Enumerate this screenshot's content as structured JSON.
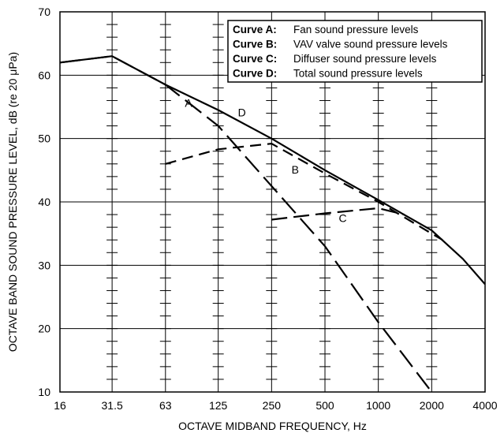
{
  "chart_data": {
    "type": "line",
    "xlabel": "OCTAVE MIDBAND FREQUENCY, Hz",
    "ylabel": "OCTAVE BAND SOUND PRESSURE LEVEL, dB (re 20 μPa)",
    "x_scale": "log2",
    "x_ticks": [
      "16",
      "31.5",
      "63",
      "125",
      "250",
      "500",
      "1000",
      "2000",
      "4000"
    ],
    "x_tick_values": [
      16,
      31.5,
      63,
      125,
      250,
      500,
      1000,
      2000,
      4000
    ],
    "xlim": [
      16,
      4000
    ],
    "ylim": [
      10,
      70
    ],
    "y_ticks": [
      10,
      20,
      30,
      40,
      50,
      60,
      70
    ],
    "grid": "horizontal lines every 10 dB, vertical lines at each octave with minor tick marks",
    "legend": {
      "placement": "top-right",
      "entries": [
        {
          "key": "Curve A:",
          "desc": "Fan sound pressure levels"
        },
        {
          "key": "Curve B:",
          "desc": "VAV valve sound pressure levels"
        },
        {
          "key": "Curve C:",
          "desc": "Diffuser sound pressure levels"
        },
        {
          "key": "Curve D:",
          "desc": "Total sound pressure levels"
        }
      ]
    },
    "series": [
      {
        "name": "A",
        "style": "long-dash",
        "label_at": {
          "x": 85,
          "y": 55
        },
        "points": [
          [
            16,
            62
          ],
          [
            31.5,
            63
          ],
          [
            63,
            58.5
          ],
          [
            125,
            52
          ],
          [
            250,
            42.5
          ],
          [
            500,
            33
          ],
          [
            1000,
            21
          ],
          [
            2000,
            10
          ]
        ]
      },
      {
        "name": "B",
        "style": "short-dash",
        "label_at": {
          "x": 340,
          "y": 44.5
        },
        "points": [
          [
            63,
            46
          ],
          [
            125,
            48.3
          ],
          [
            250,
            49.2
          ],
          [
            500,
            44.5
          ],
          [
            1000,
            40
          ],
          [
            2000,
            35
          ],
          [
            2300,
            34
          ]
        ]
      },
      {
        "name": "C",
        "style": "dash",
        "label_at": {
          "x": 630,
          "y": 36.8
        },
        "points": [
          [
            250,
            37.2
          ],
          [
            500,
            38.2
          ],
          [
            1000,
            39
          ],
          [
            1400,
            38
          ]
        ]
      },
      {
        "name": "D",
        "style": "solid",
        "label_at": {
          "x": 170,
          "y": 53.5
        },
        "points": [
          [
            16,
            62
          ],
          [
            31.5,
            63
          ],
          [
            63,
            58.5
          ],
          [
            125,
            54.5
          ],
          [
            250,
            50
          ],
          [
            500,
            45
          ],
          [
            1000,
            40.3
          ],
          [
            2000,
            35.5
          ],
          [
            3000,
            31
          ],
          [
            4000,
            27
          ]
        ]
      }
    ]
  }
}
